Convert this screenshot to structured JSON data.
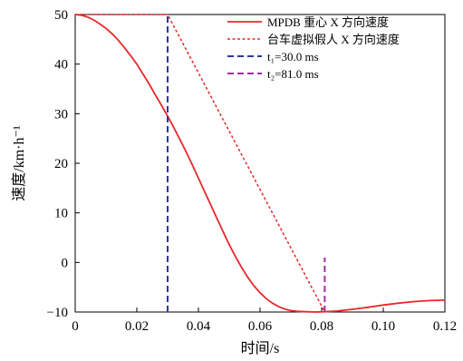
{
  "chart_data": {
    "type": "line",
    "xlabel": "时间/s",
    "ylabel": "速度/km·h⁻¹",
    "xlim": [
      0,
      0.12
    ],
    "ylim": [
      -10,
      50
    ],
    "x_ticks": [
      "0",
      "0.02",
      "0.04",
      "0.06",
      "0.08",
      "0.10",
      "0.12"
    ],
    "y_ticks": [
      "−10",
      "0",
      "10",
      "20",
      "30",
      "40",
      "50"
    ],
    "grid": false,
    "legend_position": "top-right",
    "series": [
      {
        "name": "MPDB 重心 X 方向速度",
        "style": "solid",
        "color": "#e8282b",
        "points": [
          [
            0,
            50
          ],
          [
            0.002,
            49.85
          ],
          [
            0.004,
            49.5
          ],
          [
            0.006,
            48.9
          ],
          [
            0.008,
            48.1
          ],
          [
            0.01,
            47.2
          ],
          [
            0.012,
            46.1
          ],
          [
            0.014,
            44.8
          ],
          [
            0.016,
            43.3
          ],
          [
            0.018,
            41.7
          ],
          [
            0.02,
            40.0
          ],
          [
            0.022,
            38.0
          ],
          [
            0.024,
            36.0
          ],
          [
            0.026,
            33.8
          ],
          [
            0.028,
            31.7
          ],
          [
            0.03,
            29.5
          ],
          [
            0.032,
            27.2
          ],
          [
            0.034,
            24.8
          ],
          [
            0.036,
            22.3
          ],
          [
            0.038,
            19.7
          ],
          [
            0.04,
            17.0
          ],
          [
            0.042,
            14.3
          ],
          [
            0.044,
            11.6
          ],
          [
            0.046,
            8.9
          ],
          [
            0.048,
            6.2
          ],
          [
            0.05,
            3.6
          ],
          [
            0.052,
            1.2
          ],
          [
            0.054,
            -1.0
          ],
          [
            0.056,
            -3.0
          ],
          [
            0.058,
            -4.7
          ],
          [
            0.06,
            -6.1
          ],
          [
            0.062,
            -7.3
          ],
          [
            0.064,
            -8.2
          ],
          [
            0.066,
            -8.9
          ],
          [
            0.068,
            -9.4
          ],
          [
            0.07,
            -9.7
          ],
          [
            0.072,
            -9.85
          ],
          [
            0.075,
            -9.95
          ],
          [
            0.078,
            -10.0
          ],
          [
            0.081,
            -9.95
          ],
          [
            0.085,
            -9.8
          ],
          [
            0.09,
            -9.45
          ],
          [
            0.095,
            -9.05
          ],
          [
            0.1,
            -8.6
          ],
          [
            0.105,
            -8.2
          ],
          [
            0.11,
            -7.9
          ],
          [
            0.115,
            -7.7
          ],
          [
            0.12,
            -7.6
          ]
        ]
      },
      {
        "name": "台车虚拟假人 X 方向速度",
        "style": "dotted",
        "color": "#e8282b",
        "points": [
          [
            0,
            50
          ],
          [
            0.03,
            50
          ],
          [
            0.081,
            -10
          ]
        ]
      }
    ],
    "markers": [
      {
        "name": "t₁=30.0 ms",
        "x": 0.03,
        "style": "dashed",
        "color": "#2b3a9a",
        "y_from": -10,
        "y_to": 50
      },
      {
        "name": "t₂=81.0 ms",
        "x": 0.081,
        "style": "dashed",
        "color": "#a02e9e",
        "y_from": -10,
        "y_to": 1
      }
    ]
  }
}
